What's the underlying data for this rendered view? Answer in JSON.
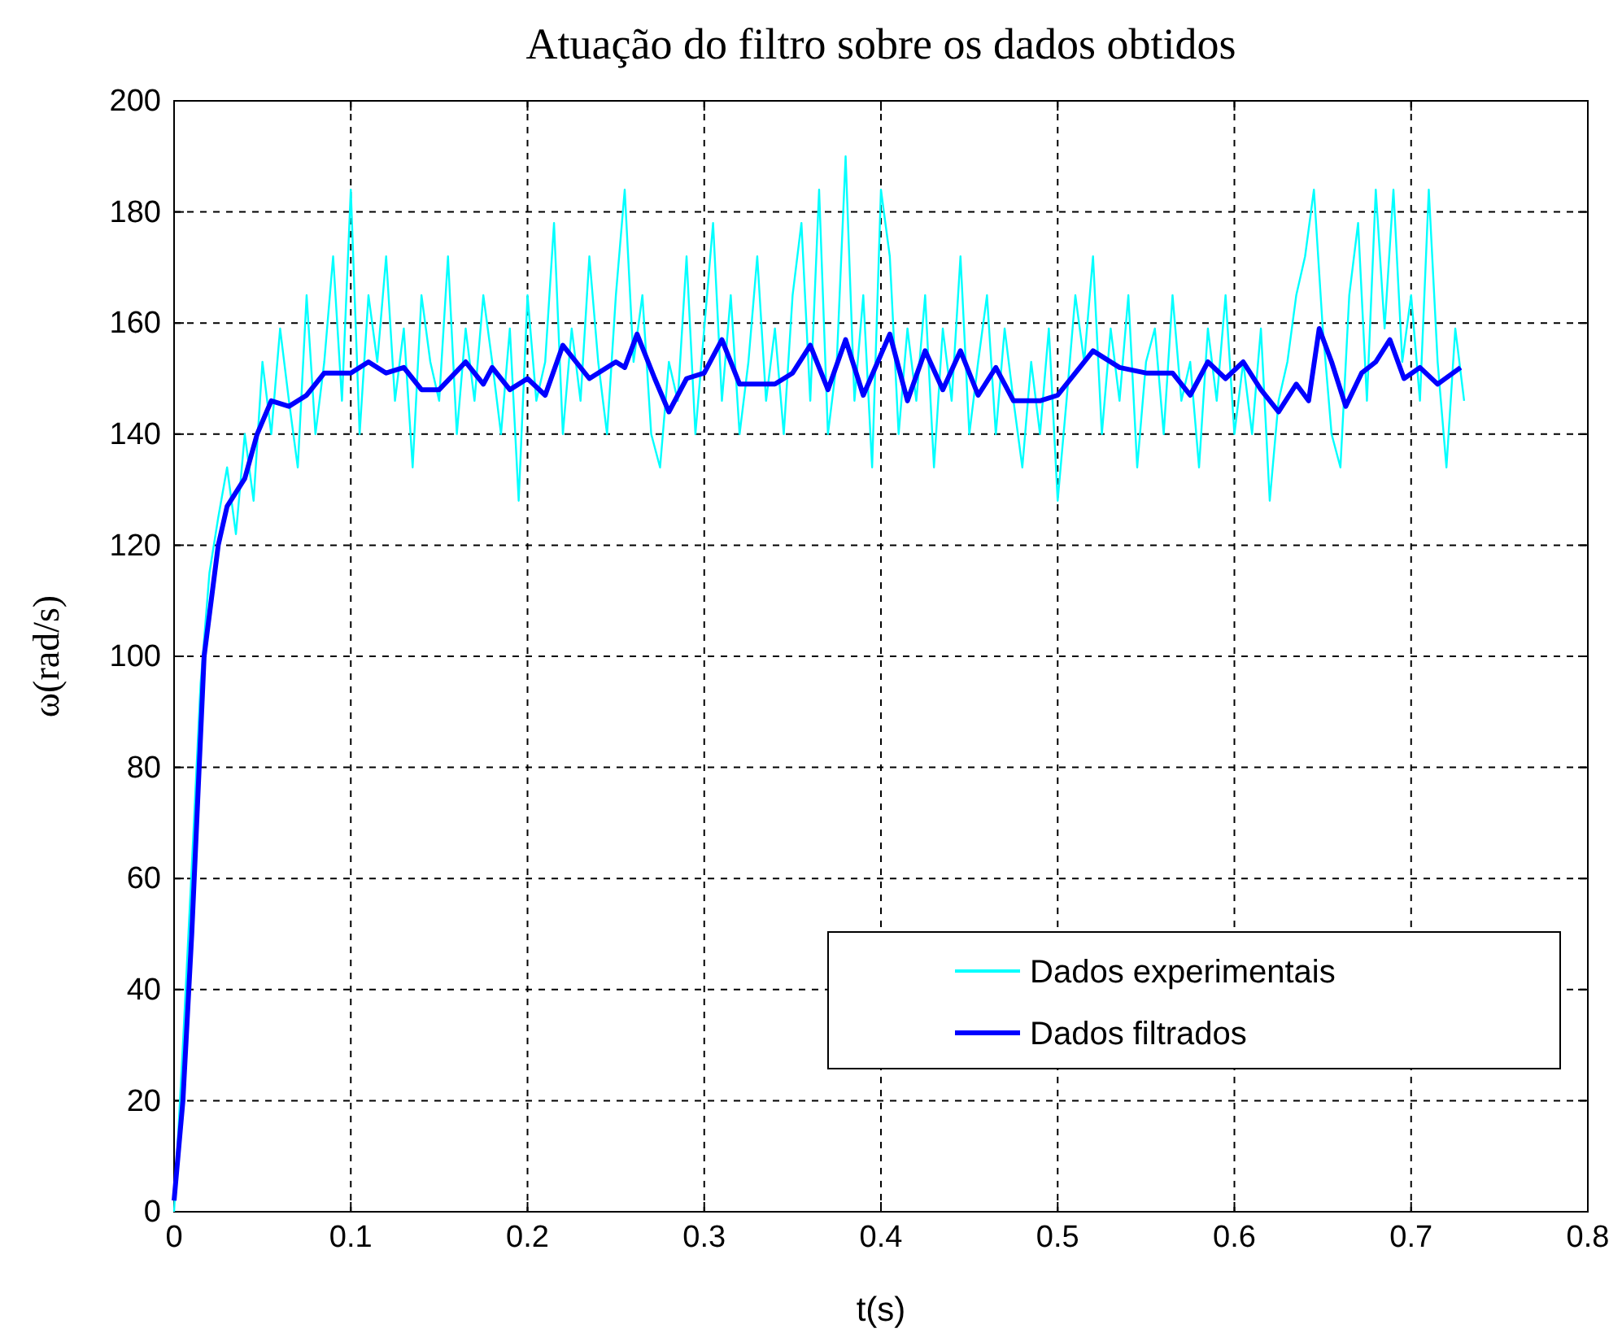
{
  "chart_data": {
    "type": "line",
    "title": "Atuação do filtro sobre os dados obtidos",
    "xlabel": "t(s)",
    "ylabel": "ω(rad/s)",
    "xlim": [
      0,
      0.8
    ],
    "xticks": [
      0,
      0.1,
      0.2,
      0.3,
      0.4,
      0.5,
      0.6,
      0.7,
      0.8
    ],
    "ylim": [
      0,
      200
    ],
    "yticks": [
      0,
      20,
      40,
      60,
      80,
      100,
      120,
      140,
      160,
      180,
      200
    ],
    "grid": true,
    "legend": "bottom right",
    "series": [
      {
        "name": "Dados experimentais",
        "color": "#00ffff",
        "x": [
          0,
          0.005,
          0.01,
          0.015,
          0.02,
          0.025,
          0.03,
          0.035,
          0.04,
          0.045,
          0.05,
          0.055,
          0.06,
          0.065,
          0.07,
          0.075,
          0.08,
          0.085,
          0.09,
          0.095,
          0.1,
          0.105,
          0.11,
          0.115,
          0.12,
          0.125,
          0.13,
          0.135,
          0.14,
          0.145,
          0.15,
          0.155,
          0.16,
          0.165,
          0.17,
          0.175,
          0.18,
          0.185,
          0.19,
          0.195,
          0.2,
          0.205,
          0.21,
          0.215,
          0.22,
          0.225,
          0.23,
          0.235,
          0.24,
          0.245,
          0.25,
          0.255,
          0.26,
          0.265,
          0.27,
          0.275,
          0.28,
          0.285,
          0.29,
          0.295,
          0.3,
          0.305,
          0.31,
          0.315,
          0.32,
          0.325,
          0.33,
          0.335,
          0.34,
          0.345,
          0.35,
          0.355,
          0.36,
          0.365,
          0.37,
          0.375,
          0.38,
          0.385,
          0.39,
          0.395,
          0.4,
          0.405,
          0.41,
          0.415,
          0.42,
          0.425,
          0.43,
          0.435,
          0.44,
          0.445,
          0.45,
          0.455,
          0.46,
          0.465,
          0.47,
          0.475,
          0.48,
          0.485,
          0.49,
          0.495,
          0.5,
          0.505,
          0.51,
          0.515,
          0.52,
          0.525,
          0.53,
          0.535,
          0.54,
          0.545,
          0.55,
          0.555,
          0.56,
          0.565,
          0.57,
          0.575,
          0.58,
          0.585,
          0.59,
          0.595,
          0.6,
          0.605,
          0.61,
          0.615,
          0.62,
          0.625,
          0.63,
          0.635,
          0.64,
          0.645,
          0.65,
          0.655,
          0.66,
          0.665,
          0.67,
          0.675,
          0.68,
          0.685,
          0.69,
          0.695,
          0.7,
          0.705,
          0.71,
          0.715,
          0.72,
          0.725,
          0.73
        ],
        "values": [
          0,
          30,
          62,
          95,
          115,
          125,
          134,
          122,
          140,
          128,
          153,
          140,
          159,
          146,
          134,
          165,
          140,
          153,
          172,
          146,
          184,
          140,
          165,
          153,
          172,
          146,
          159,
          134,
          165,
          153,
          146,
          172,
          140,
          159,
          146,
          165,
          153,
          140,
          159,
          128,
          165,
          146,
          153,
          178,
          140,
          159,
          146,
          172,
          153,
          140,
          165,
          184,
          153,
          165,
          140,
          134,
          153,
          146,
          172,
          140,
          159,
          178,
          146,
          165,
          140,
          153,
          172,
          146,
          159,
          140,
          165,
          178,
          146,
          184,
          140,
          153,
          190,
          146,
          165,
          134,
          184,
          172,
          140,
          159,
          146,
          165,
          134,
          159,
          146,
          172,
          140,
          153,
          165,
          140,
          159,
          146,
          134,
          153,
          140,
          159,
          128,
          146,
          165,
          153,
          172,
          140,
          159,
          146,
          165,
          134,
          153,
          159,
          140,
          165,
          146,
          153,
          134,
          159,
          146,
          165,
          140,
          153,
          140,
          159,
          128,
          146,
          153,
          165,
          172,
          184,
          159,
          140,
          134,
          165,
          178,
          146,
          184,
          159,
          184,
          153,
          165,
          146,
          184,
          153,
          134,
          159,
          146
        ]
      },
      {
        "name": "Dados filtrados",
        "color": "#0000ff",
        "x": [
          0,
          0.005,
          0.01,
          0.017,
          0.025,
          0.03,
          0.04,
          0.047,
          0.055,
          0.065,
          0.075,
          0.085,
          0.1,
          0.11,
          0.12,
          0.13,
          0.14,
          0.15,
          0.165,
          0.175,
          0.18,
          0.19,
          0.2,
          0.21,
          0.22,
          0.235,
          0.25,
          0.255,
          0.262,
          0.272,
          0.28,
          0.29,
          0.3,
          0.31,
          0.32,
          0.34,
          0.35,
          0.36,
          0.37,
          0.38,
          0.39,
          0.405,
          0.415,
          0.425,
          0.435,
          0.445,
          0.455,
          0.465,
          0.475,
          0.49,
          0.5,
          0.52,
          0.535,
          0.55,
          0.565,
          0.575,
          0.585,
          0.595,
          0.605,
          0.615,
          0.625,
          0.635,
          0.642,
          0.648,
          0.655,
          0.663,
          0.672,
          0.68,
          0.688,
          0.696,
          0.705,
          0.715,
          0.728
        ],
        "values": [
          2,
          20,
          50,
          100,
          120,
          127,
          132,
          140,
          146,
          145,
          147,
          151,
          151,
          153,
          151,
          152,
          148,
          148,
          153,
          149,
          152,
          148,
          150,
          147,
          156,
          150,
          153,
          152,
          158,
          150,
          144,
          150,
          151,
          157,
          149,
          149,
          151,
          156,
          148,
          157,
          147,
          158,
          146,
          155,
          148,
          155,
          147,
          152,
          146,
          146,
          147,
          155,
          152,
          151,
          151,
          147,
          153,
          150,
          153,
          148,
          144,
          149,
          146,
          159,
          153,
          145,
          151,
          153,
          157,
          150,
          152,
          149,
          152
        ]
      }
    ]
  }
}
